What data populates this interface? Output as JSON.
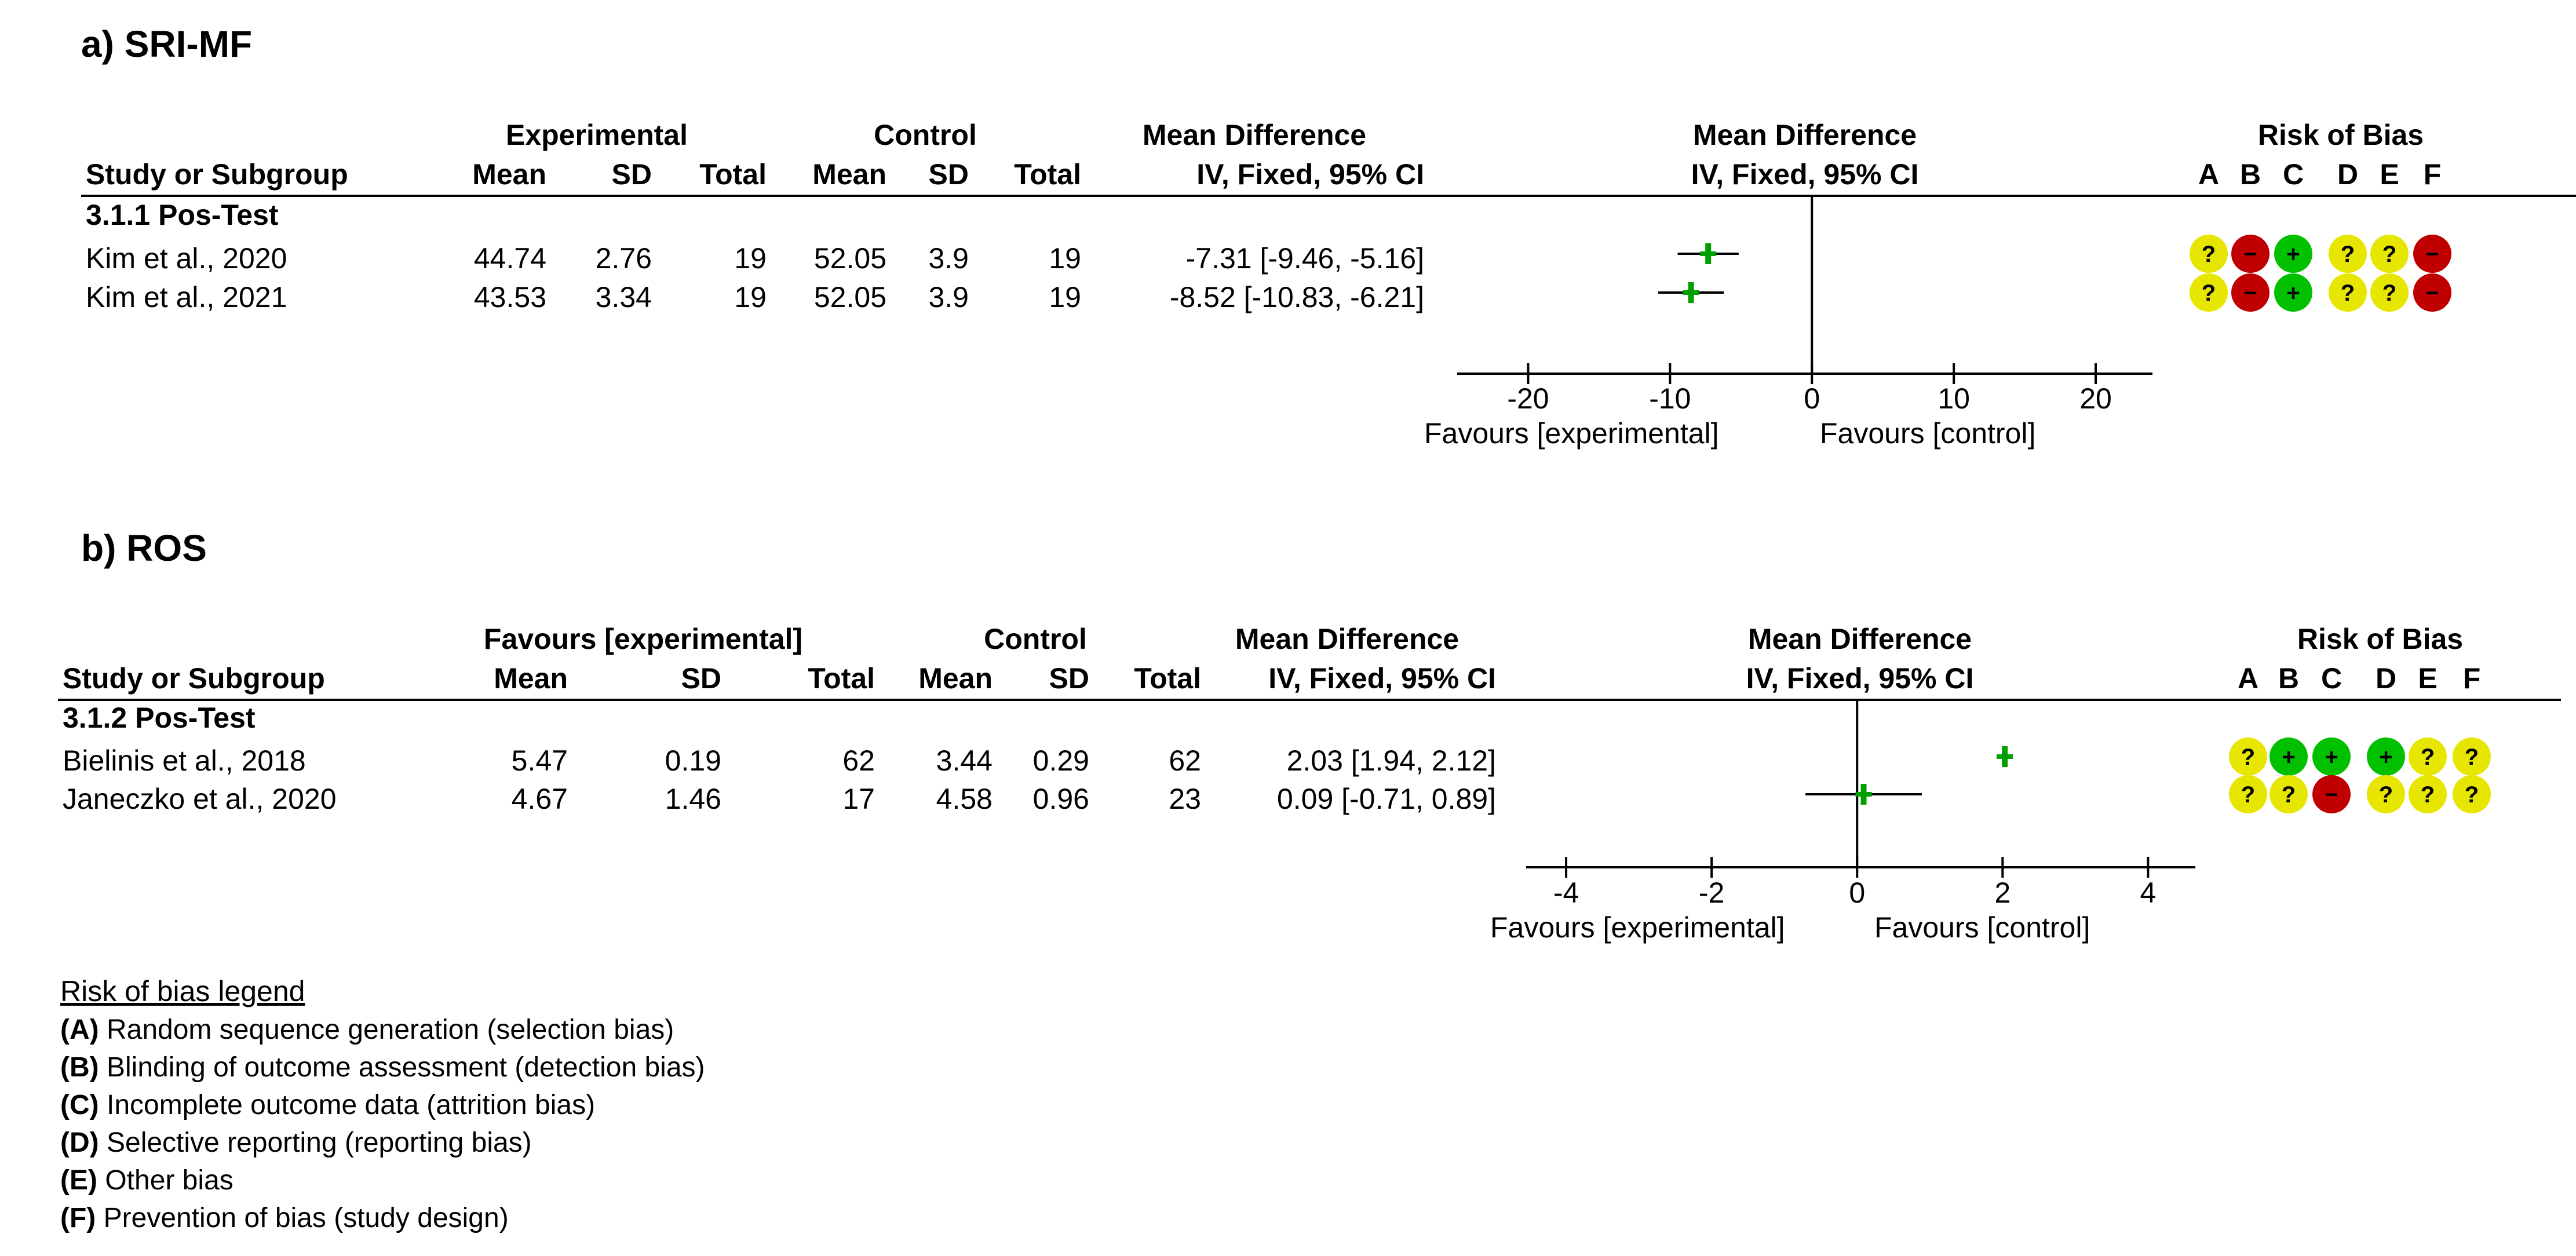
{
  "chart_data": [
    {
      "type": "forest",
      "panel_title": "a) SRI-MF",
      "header": {
        "group1": "Experimental",
        "group2": "Control",
        "effect_col": "Mean Difference",
        "effect_sub": "IV, Fixed, 95% CI",
        "plot_col": "Mean Difference",
        "plot_sub": "IV, Fixed, 95% CI",
        "rob_title": "Risk of Bias",
        "study_col": "Study or Subgroup",
        "mean1": "Mean",
        "sd1": "SD",
        "total1": "Total",
        "mean2": "Mean",
        "sd2": "SD",
        "total2": "Total",
        "rob_letters": [
          "A",
          "B",
          "C",
          "D",
          "E",
          "F"
        ]
      },
      "subgroup": "3.1.1 Pos-Test",
      "studies": [
        {
          "name": "Kim et al., 2020",
          "mean1": "44.74",
          "sd1": "2.76",
          "total1": "19",
          "mean2": "52.05",
          "sd2": "3.9",
          "total2": "19",
          "ci_text": "-7.31 [-9.46, -5.16]",
          "est": -7.31,
          "lo": -9.46,
          "hi": -5.16,
          "rob": [
            "unclear",
            "high",
            "low",
            "unclear",
            "unclear",
            "high"
          ]
        },
        {
          "name": "Kim et al., 2021",
          "mean1": "43.53",
          "sd1": "3.34",
          "total1": "19",
          "mean2": "52.05",
          "sd2": "3.9",
          "total2": "19",
          "ci_text": "-8.52 [-10.83, -6.21]",
          "est": -8.52,
          "lo": -10.83,
          "hi": -6.21,
          "rob": [
            "unclear",
            "high",
            "low",
            "unclear",
            "unclear",
            "high"
          ]
        }
      ],
      "axis": {
        "range": [
          -25,
          24
        ],
        "ticks": [
          -20,
          -10,
          0,
          10,
          20
        ],
        "tick_labels": [
          "-20",
          "-10",
          "0",
          "10",
          "20"
        ]
      },
      "favours_left": "Favours [experimental]",
      "favours_right": "Favours [control]"
    },
    {
      "type": "forest",
      "panel_title": "b) ROS",
      "header": {
        "group1": "Favours [experimental]",
        "group2": "Control",
        "effect_col": "Mean Difference",
        "effect_sub": "IV, Fixed, 95% CI",
        "plot_col": "Mean Difference",
        "plot_sub": "IV, Fixed, 95% CI",
        "rob_title": "Risk of Bias",
        "study_col": "Study or Subgroup",
        "mean1": "Mean",
        "sd1": "SD",
        "total1": "Total",
        "mean2": "Mean",
        "sd2": "SD",
        "total2": "Total",
        "rob_letters": [
          "A",
          "B",
          "C",
          "D",
          "E",
          "F"
        ]
      },
      "subgroup": "3.1.2 Pos-Test",
      "studies": [
        {
          "name": "Bielinis et al., 2018",
          "mean1": "5.47",
          "sd1": "0.19",
          "total1": "62",
          "mean2": "3.44",
          "sd2": "0.29",
          "total2": "62",
          "ci_text": "2.03 [1.94, 2.12]",
          "est": 2.03,
          "lo": 1.94,
          "hi": 2.12,
          "rob": [
            "unclear",
            "low",
            "low",
            "low",
            "unclear",
            "unclear"
          ]
        },
        {
          "name": "Janeczko et al., 2020",
          "mean1": "4.67",
          "sd1": "1.46",
          "total1": "17",
          "mean2": "4.58",
          "sd2": "0.96",
          "total2": "23",
          "ci_text": "0.09 [-0.71, 0.89]",
          "est": 0.09,
          "lo": -0.71,
          "hi": 0.89,
          "rob": [
            "unclear",
            "unclear",
            "high",
            "unclear",
            "unclear",
            "unclear"
          ]
        }
      ],
      "axis": {
        "range": [
          -4.55,
          4.65
        ],
        "ticks": [
          -4,
          -2,
          0,
          2,
          4
        ],
        "tick_labels": [
          "-4",
          "-2",
          "0",
          "2",
          "4"
        ]
      },
      "favours_left": "Favours [experimental]",
      "favours_right": "Favours [control]"
    }
  ],
  "legend": {
    "title": "Risk of bias legend",
    "items": [
      {
        "key": "(A)",
        "text": " Random sequence generation (selection bias)"
      },
      {
        "key": "(B)",
        "text": " Blinding of outcome assessment (detection bias)"
      },
      {
        "key": "(C)",
        "text": " Incomplete outcome data (attrition bias)"
      },
      {
        "key": "(D)",
        "text": " Selective reporting (reporting bias)"
      },
      {
        "key": "(E)",
        "text": " Other bias"
      },
      {
        "key": "(F)",
        "text": " Prevention of bias (study design)"
      }
    ]
  },
  "rob_symbols": {
    "low": {
      "glyph": "+",
      "color": "#00c000"
    },
    "high": {
      "glyph": "−",
      "color": "#c00000"
    },
    "unclear": {
      "glyph": "?",
      "color": "#e6e600"
    }
  },
  "colors": {
    "ci_line": "#000000",
    "point": "#00a000",
    "rule": "#000000"
  }
}
